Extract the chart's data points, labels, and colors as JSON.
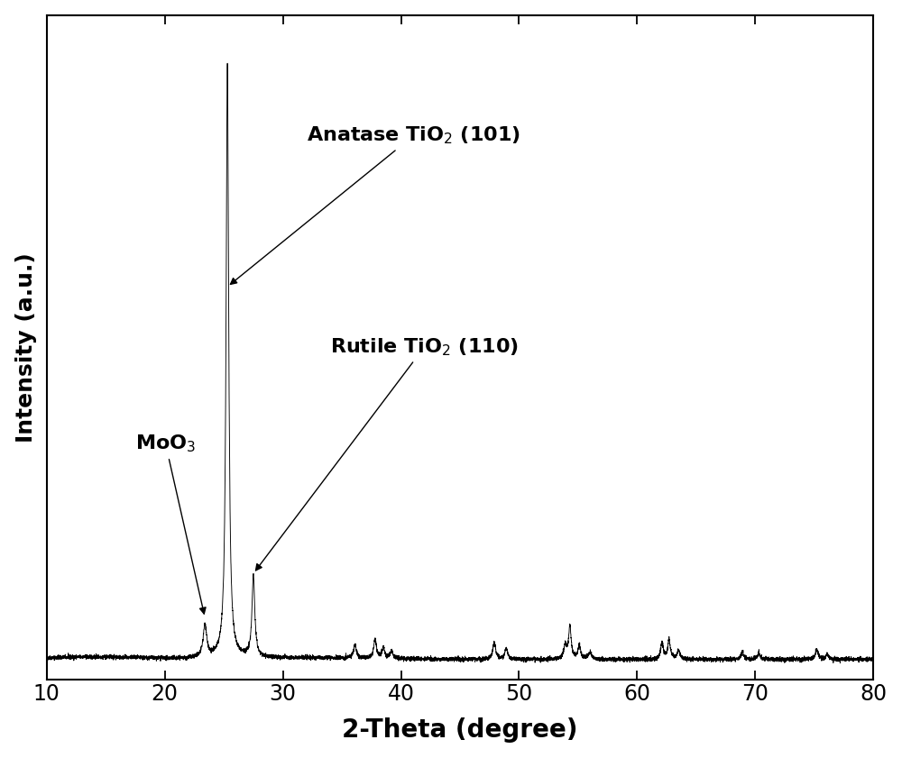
{
  "xmin": 10,
  "xmax": 80,
  "xlabel": "2-Theta (degree)",
  "ylabel": "Intensity (a.u.)",
  "xlabel_fontsize": 20,
  "ylabel_fontsize": 18,
  "tick_fontsize": 17,
  "background_color": "#ffffff",
  "line_color": "#000000",
  "annotation_anatase_text": "Anatase TiO$_2$ (101)",
  "annotation_rutile_text": "Rutile TiO$_2$ (110)",
  "annotation_moo3_text": "MoO$_3$",
  "annotation_fontsize": 16,
  "annotation_fontweight": "bold"
}
